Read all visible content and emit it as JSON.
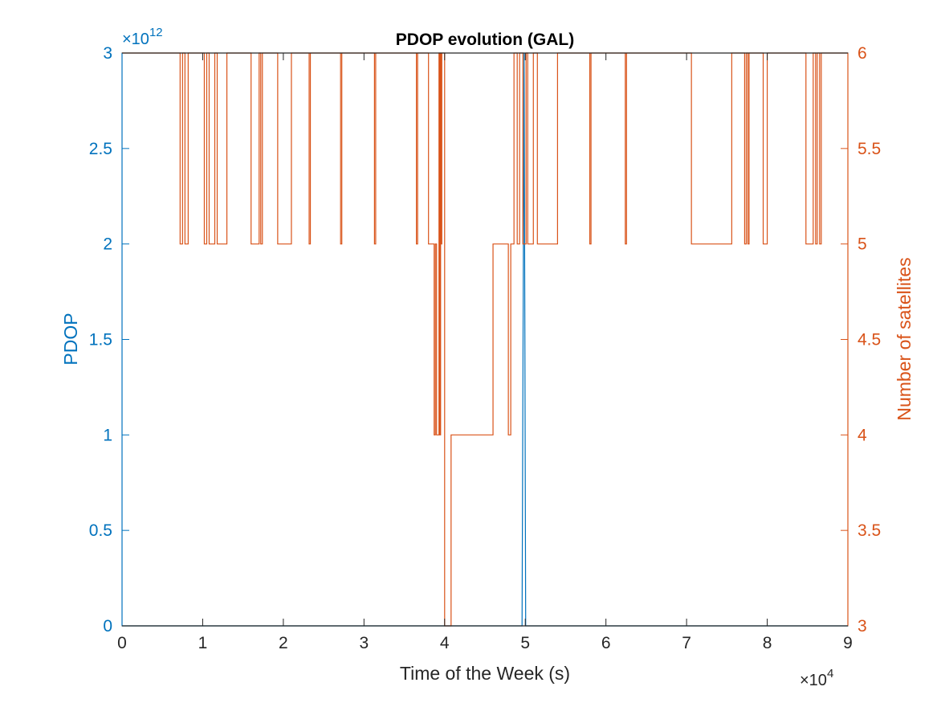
{
  "chart_data": {
    "type": "line",
    "title": "PDOP evolution (GAL)",
    "xlabel": "Time of the Week (s)",
    "xlim": [
      0,
      90000
    ],
    "x_ticks": [
      0,
      10000,
      20000,
      30000,
      40000,
      50000,
      60000,
      70000,
      80000,
      90000
    ],
    "x_tick_labels": [
      "0",
      "1",
      "2",
      "3",
      "4",
      "5",
      "6",
      "7",
      "8",
      "9"
    ],
    "x_exponent_label": "×10",
    "x_exponent": "4",
    "y_left": {
      "label": "PDOP",
      "lim": [
        0,
        3000000000000
      ],
      "ticks": [
        0,
        500000000000,
        1000000000000,
        1500000000000,
        2000000000000,
        2500000000000,
        3000000000000
      ],
      "tick_labels": [
        "0",
        "0.5",
        "1",
        "1.5",
        "2",
        "2.5",
        "3"
      ],
      "exponent_label": "×10",
      "exponent": "12",
      "color": "#0072BD"
    },
    "y_right": {
      "label": "Number of satellites",
      "lim": [
        3,
        6
      ],
      "ticks": [
        3,
        3.5,
        4,
        4.5,
        5,
        5.5,
        6
      ],
      "tick_labels": [
        "3",
        "3.5",
        "4",
        "4.5",
        "5",
        "5.5",
        "6"
      ],
      "color": "#D95319"
    },
    "series": [
      {
        "axis": "left",
        "color": "#0072BD",
        "points": [
          [
            0,
            0
          ],
          [
            49600,
            0
          ],
          [
            49850,
            3000000000000
          ],
          [
            50050,
            0
          ],
          [
            90000,
            0
          ]
        ]
      },
      {
        "axis": "right",
        "color": "#D95319",
        "step": true,
        "points": [
          [
            0,
            6
          ],
          [
            7200,
            5
          ],
          [
            7500,
            6
          ],
          [
            7800,
            5
          ],
          [
            8200,
            6
          ],
          [
            10200,
            5
          ],
          [
            10500,
            6
          ],
          [
            10800,
            5
          ],
          [
            11500,
            6
          ],
          [
            11800,
            5
          ],
          [
            13000,
            6
          ],
          [
            16000,
            5
          ],
          [
            17000,
            6
          ],
          [
            17200,
            5
          ],
          [
            17400,
            6
          ],
          [
            19300,
            5
          ],
          [
            21000,
            6
          ],
          [
            23200,
            5
          ],
          [
            23350,
            6
          ],
          [
            27100,
            5
          ],
          [
            27250,
            6
          ],
          [
            31300,
            5
          ],
          [
            31450,
            6
          ],
          [
            36500,
            5
          ],
          [
            36650,
            6
          ],
          [
            38000,
            5
          ],
          [
            38700,
            4
          ],
          [
            38850,
            5
          ],
          [
            39000,
            4
          ],
          [
            39300,
            6
          ],
          [
            39400,
            4
          ],
          [
            39500,
            6
          ],
          [
            39550,
            5
          ],
          [
            39650,
            6
          ],
          [
            40000,
            3
          ],
          [
            40800,
            4
          ],
          [
            46000,
            5
          ],
          [
            47900,
            4
          ],
          [
            48200,
            5
          ],
          [
            48600,
            6
          ],
          [
            49000,
            5
          ],
          [
            49300,
            6
          ],
          [
            49700,
            5
          ],
          [
            50100,
            6
          ],
          [
            50300,
            5
          ],
          [
            51000,
            6
          ],
          [
            51500,
            5
          ],
          [
            54000,
            6
          ],
          [
            58000,
            5
          ],
          [
            58150,
            6
          ],
          [
            62400,
            5
          ],
          [
            62550,
            6
          ],
          [
            70600,
            5
          ],
          [
            75600,
            6
          ],
          [
            77200,
            5
          ],
          [
            77400,
            6
          ],
          [
            77600,
            5
          ],
          [
            77750,
            6
          ],
          [
            79500,
            5
          ],
          [
            80000,
            6
          ],
          [
            84800,
            5
          ],
          [
            85700,
            6
          ],
          [
            86000,
            5
          ],
          [
            86200,
            6
          ],
          [
            86500,
            5
          ],
          [
            86700,
            6
          ],
          [
            90000,
            6
          ]
        ]
      }
    ]
  }
}
